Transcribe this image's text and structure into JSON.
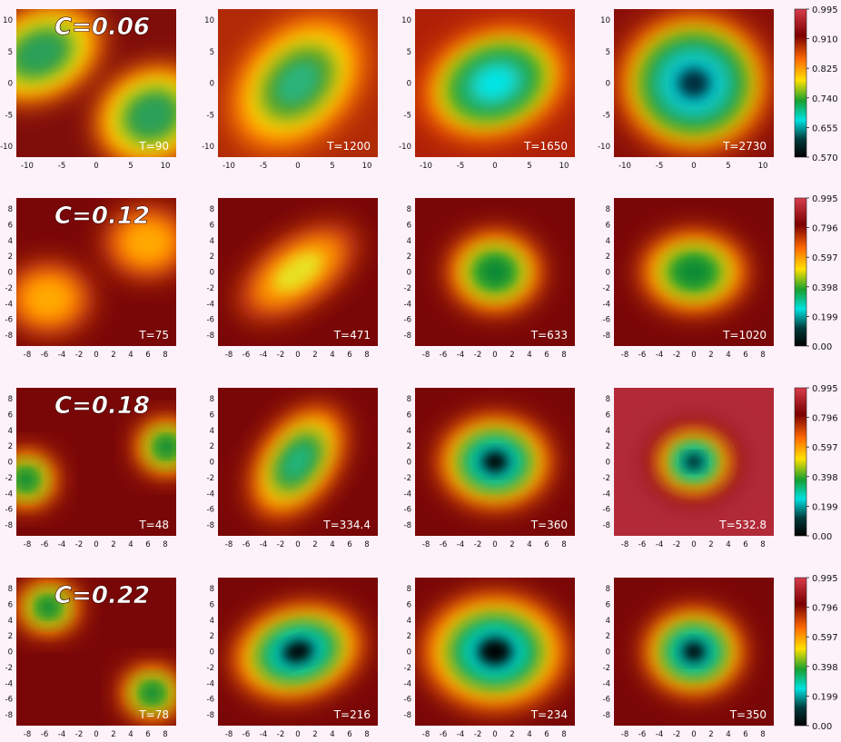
{
  "colormap": [
    "#000000",
    "#00e5e5",
    "#17a02a",
    "#ffd900",
    "#ff6a00",
    "#7a0000",
    "#d02c3c"
  ],
  "rows": [
    {
      "label": "C=0.06",
      "ticks": [
        "-10",
        "-5",
        "0",
        "5",
        "10"
      ],
      "yticks": [
        "10",
        "5",
        "0",
        "-5",
        "-10"
      ],
      "colorbar": [
        "0.995",
        "0.910",
        "0.825",
        "0.740",
        "0.655",
        "0.570"
      ],
      "panels": [
        {
          "time": "T=90"
        },
        {
          "time": "T=1200"
        },
        {
          "time": "T=1650"
        },
        {
          "time": "T=2730"
        }
      ]
    },
    {
      "label": "C=0.12",
      "ticks": [
        "-8",
        "-6",
        "-4",
        "-2",
        "0",
        "2",
        "4",
        "6",
        "8"
      ],
      "yticks": [
        "8",
        "6",
        "4",
        "2",
        "0",
        "-2",
        "-4",
        "-6",
        "-8"
      ],
      "colorbar": [
        "0.995",
        "0.796",
        "0.597",
        "0.398",
        "0.199",
        "0.00"
      ],
      "panels": [
        {
          "time": "T=75"
        },
        {
          "time": "T=471"
        },
        {
          "time": "T=633"
        },
        {
          "time": "T=1020"
        }
      ]
    },
    {
      "label": "C=0.18",
      "ticks": [
        "-8",
        "-6",
        "-4",
        "-2",
        "0",
        "2",
        "4",
        "6",
        "8"
      ],
      "yticks": [
        "8",
        "6",
        "4",
        "2",
        "0",
        "-2",
        "-4",
        "-6",
        "-8"
      ],
      "colorbar": [
        "0.995",
        "0.796",
        "0.597",
        "0.398",
        "0.199",
        "0.00"
      ],
      "panels": [
        {
          "time": "T=48"
        },
        {
          "time": "T=334.4"
        },
        {
          "time": "T=360"
        },
        {
          "time": "T=532.8"
        }
      ]
    },
    {
      "label": "C=0.22",
      "ticks": [
        "-8",
        "-6",
        "-4",
        "-2",
        "0",
        "2",
        "4",
        "6",
        "8"
      ],
      "yticks": [
        "8",
        "6",
        "4",
        "2",
        "0",
        "-2",
        "-4",
        "-6",
        "-8"
      ],
      "colorbar": [
        "0.995",
        "0.796",
        "0.597",
        "0.398",
        "0.199",
        "0.00"
      ],
      "panels": [
        {
          "time": "T=78"
        },
        {
          "time": "T=216"
        },
        {
          "time": "T=234"
        },
        {
          "time": "T=350"
        }
      ]
    }
  ]
}
